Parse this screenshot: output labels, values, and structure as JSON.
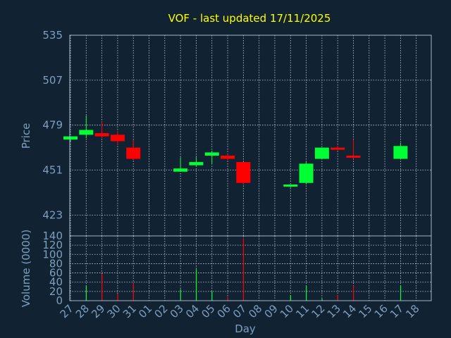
{
  "chart_data": {
    "type": "candlestick",
    "title": "VOF - last updated 17/11/2025",
    "xlabel": "Day",
    "ylabel_price": "Price",
    "ylabel_volume": "Volume (0000)",
    "x": [
      "27",
      "28",
      "29",
      "30",
      "31",
      "01",
      "02",
      "03",
      "04",
      "05",
      "06",
      "07",
      "08",
      "09",
      "10",
      "11",
      "12",
      "13",
      "14",
      "15",
      "16",
      "17",
      "18"
    ],
    "price_ylim": [
      410,
      535
    ],
    "price_ticks": [
      535,
      507,
      479,
      451,
      423
    ],
    "volume_ylim": [
      0,
      140
    ],
    "volume_ticks": [
      140,
      120,
      100,
      80,
      60,
      40,
      20,
      0
    ],
    "grid": true,
    "colors": {
      "up": "#00ff33",
      "down": "#ff0000",
      "background": "#112233",
      "title": "#ffff00",
      "axis_text": "#7f9fbf"
    },
    "candles": [
      {
        "day": "27",
        "open": 470,
        "high": 472,
        "low": 469,
        "close": 472,
        "volume": 2
      },
      {
        "day": "28",
        "open": 473,
        "high": 485,
        "low": 471,
        "close": 476,
        "volume": 32
      },
      {
        "day": "29",
        "open": 474,
        "high": 481,
        "low": 471,
        "close": 472,
        "volume": 58
      },
      {
        "day": "30",
        "open": 473,
        "high": 475,
        "low": 467,
        "close": 469,
        "volume": 15
      },
      {
        "day": "31",
        "open": 465,
        "high": 470,
        "low": 457,
        "close": 458,
        "volume": 38
      },
      {
        "day": "03",
        "open": 450,
        "high": 459,
        "low": 450,
        "close": 452,
        "volume": 25
      },
      {
        "day": "04",
        "open": 454,
        "high": 459,
        "low": 453,
        "close": 456,
        "volume": 68
      },
      {
        "day": "05",
        "open": 460,
        "high": 463,
        "low": 455,
        "close": 462,
        "volume": 20
      },
      {
        "day": "06",
        "open": 460,
        "high": 461,
        "low": 457,
        "close": 458,
        "volume": 8
      },
      {
        "day": "07",
        "open": 456,
        "high": 456,
        "low": 442,
        "close": 443,
        "volume": 135
      },
      {
        "day": "10",
        "open": 441,
        "high": 442,
        "low": 440,
        "close": 442,
        "volume": 12
      },
      {
        "day": "11",
        "open": 443,
        "high": 456,
        "low": 442,
        "close": 455,
        "volume": 32
      },
      {
        "day": "12",
        "open": 458,
        "high": 465,
        "low": 458,
        "close": 465,
        "volume": 4
      },
      {
        "day": "13",
        "open": 465,
        "high": 466,
        "low": 463,
        "close": 464,
        "volume": 12
      },
      {
        "day": "14",
        "open": 460,
        "high": 470,
        "low": 458,
        "close": 459,
        "volume": 33
      },
      {
        "day": "17",
        "open": 458,
        "high": 468,
        "low": 458,
        "close": 466,
        "volume": 33
      }
    ]
  }
}
